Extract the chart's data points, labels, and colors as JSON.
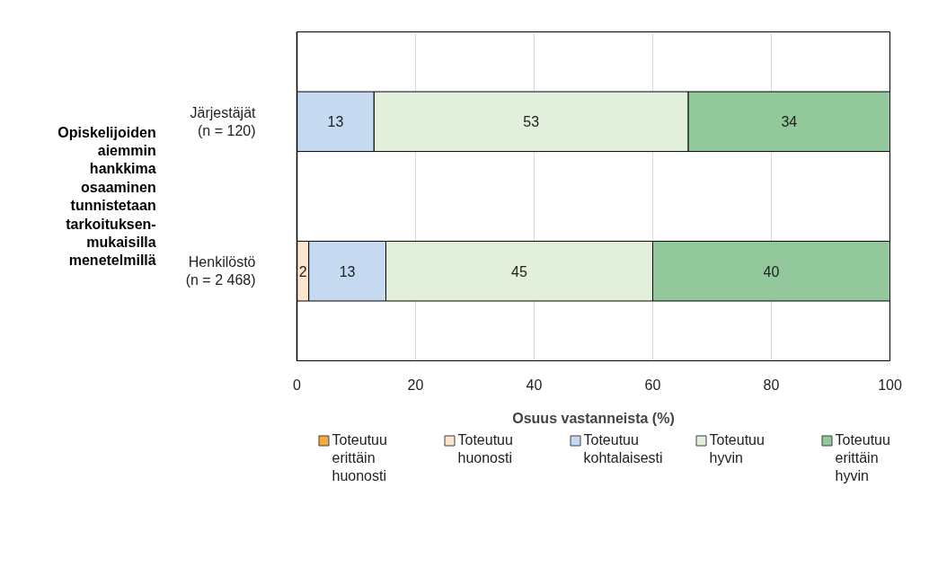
{
  "chart_data": {
    "type": "bar",
    "orientation": "horizontal",
    "stacked": true,
    "ylabel": "Opiskelijoiden aiemmin hankkima osaaminen tunnistetaan tarkoituksen-mukaisilla menetelmillä",
    "xlabel": "Osuus vastanneista (%)",
    "categories": [
      "Järjestäjät\n(n = 120)",
      "Henkilöstö\n(n = 2 468)"
    ],
    "series": [
      {
        "name": "Toteutuu erittäin huonosti",
        "color": "#f4a93b",
        "values": [
          null,
          null
        ]
      },
      {
        "name": "Toteutuu huonosti",
        "color": "#fde4cc",
        "values": [
          null,
          2
        ]
      },
      {
        "name": "Toteutuu kohtalaisesti",
        "color": "#c5d9f1",
        "values": [
          13,
          13
        ]
      },
      {
        "name": "Toteutuu hyvin",
        "color": "#e2efda",
        "values": [
          53,
          45
        ]
      },
      {
        "name": "Toteutuu erittäin hyvin",
        "color": "#92c89c",
        "values": [
          34,
          40
        ]
      }
    ],
    "xlim": [
      0,
      100
    ],
    "xticks": [
      0,
      20,
      40,
      60,
      80,
      100
    ],
    "grid": "x",
    "data_labels": true,
    "legend": "bottom"
  }
}
